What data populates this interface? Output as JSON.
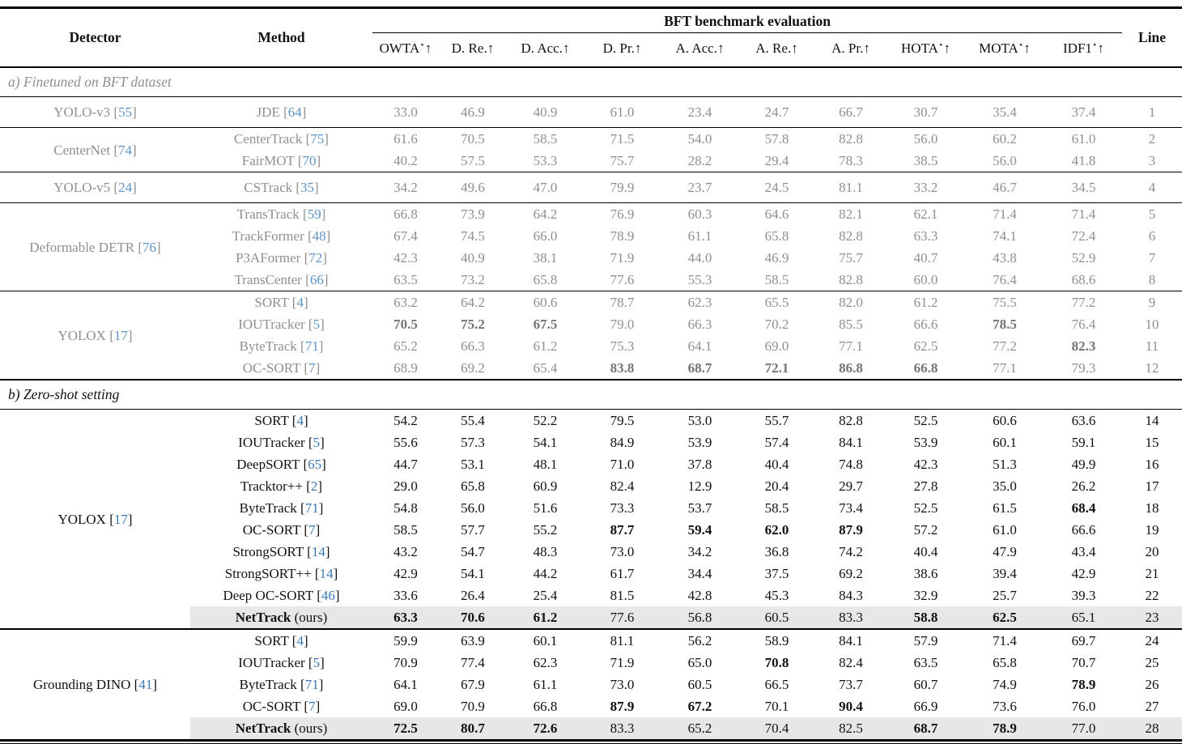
{
  "colors": {
    "citation_blue": "#3a78b5",
    "citation_blue_muted": "#5f94c6",
    "muted_text": "#8f8f8f",
    "muted_bold_text": "#757575",
    "highlight_bg": "#e7e7e7"
  },
  "header": {
    "benchmark_title": "BFT benchmark evaluation",
    "detector_col": "Detector",
    "method_col": "Method",
    "line_col": "Line",
    "metrics": [
      {
        "label": "OWTA",
        "star": true,
        "arrow": "↑"
      },
      {
        "label": "D. Re.",
        "star": false,
        "arrow": "↑"
      },
      {
        "label": "D. Acc.",
        "star": false,
        "arrow": "↑"
      },
      {
        "label": "D. Pr.",
        "star": false,
        "arrow": "↑"
      },
      {
        "label": "A. Acc.",
        "star": false,
        "arrow": "↑"
      },
      {
        "label": "A. Re.",
        "star": false,
        "arrow": "↑"
      },
      {
        "label": "A. Pr.",
        "star": false,
        "arrow": "↑"
      },
      {
        "label": "HOTA",
        "star": true,
        "arrow": "↑"
      },
      {
        "label": "MOTA",
        "star": true,
        "arrow": "↑"
      },
      {
        "label": "IDF1",
        "star": true,
        "arrow": "↑"
      }
    ]
  },
  "sections": [
    {
      "label": "a) Finetuned on BFT dataset",
      "muted": true,
      "groups": [
        {
          "detector": "YOLO-v3",
          "cite": "55",
          "rows": [
            {
              "method": "JDE",
              "cite": "64",
              "values": [
                "33.0",
                "46.9",
                "40.9",
                "61.0",
                "23.4",
                "24.7",
                "66.7",
                "30.7",
                "35.4",
                "37.4"
              ],
              "bold": [],
              "line": "1"
            }
          ]
        },
        {
          "detector": "CenterNet",
          "cite": "74",
          "rows": [
            {
              "method": "CenterTrack",
              "cite": "75",
              "values": [
                "61.6",
                "70.5",
                "58.5",
                "71.5",
                "54.0",
                "57.8",
                "82.8",
                "56.0",
                "60.2",
                "61.0"
              ],
              "bold": [],
              "line": "2"
            },
            {
              "method": "FairMOT",
              "cite": "70",
              "values": [
                "40.2",
                "57.5",
                "53.3",
                "75.7",
                "28.2",
                "29.4",
                "78.3",
                "38.5",
                "56.0",
                "41.8"
              ],
              "bold": [],
              "line": "3"
            }
          ]
        },
        {
          "detector": "YOLO-v5",
          "cite": "24",
          "rows": [
            {
              "method": "CSTrack",
              "cite": "35",
              "values": [
                "34.2",
                "49.6",
                "47.0",
                "79.9",
                "23.7",
                "24.5",
                "81.1",
                "33.2",
                "46.7",
                "34.5"
              ],
              "bold": [],
              "line": "4"
            }
          ]
        },
        {
          "detector": "Deformable DETR",
          "cite": "76",
          "rows": [
            {
              "method": "TransTrack",
              "cite": "59",
              "values": [
                "66.8",
                "73.9",
                "64.2",
                "76.9",
                "60.3",
                "64.6",
                "82.1",
                "62.1",
                "71.4",
                "71.4"
              ],
              "bold": [],
              "line": "5"
            },
            {
              "method": "TrackFormer",
              "cite": "48",
              "values": [
                "67.4",
                "74.5",
                "66.0",
                "78.9",
                "61.1",
                "65.8",
                "82.8",
                "63.3",
                "74.1",
                "72.4"
              ],
              "bold": [],
              "line": "6"
            },
            {
              "method": "P3AFormer",
              "cite": "72",
              "values": [
                "42.3",
                "40.9",
                "38.1",
                "71.9",
                "44.0",
                "46.9",
                "75.7",
                "40.7",
                "43.8",
                "52.9"
              ],
              "bold": [],
              "line": "7"
            },
            {
              "method": "TransCenter",
              "cite": "66",
              "values": [
                "63.5",
                "73.2",
                "65.8",
                "77.6",
                "55.3",
                "58.5",
                "82.8",
                "60.0",
                "76.4",
                "68.6"
              ],
              "bold": [],
              "line": "8"
            }
          ]
        },
        {
          "detector": "YOLOX",
          "cite": "17",
          "rows": [
            {
              "method": "SORT",
              "cite": "4",
              "values": [
                "63.2",
                "64.2",
                "60.6",
                "78.7",
                "62.3",
                "65.5",
                "82.0",
                "61.2",
                "75.5",
                "77.2"
              ],
              "bold": [],
              "line": "9"
            },
            {
              "method": "IOUTracker",
              "cite": "5",
              "values": [
                "70.5",
                "75.2",
                "67.5",
                "79.0",
                "66.3",
                "70.2",
                "85.5",
                "66.6",
                "78.5",
                "76.4"
              ],
              "bold": [
                0,
                1,
                2,
                8
              ],
              "line": "10"
            },
            {
              "method": "ByteTrack",
              "cite": "71",
              "values": [
                "65.2",
                "66.3",
                "61.2",
                "75.3",
                "64.1",
                "69.0",
                "77.1",
                "62.5",
                "77.2",
                "82.3"
              ],
              "bold": [
                9
              ],
              "line": "11"
            },
            {
              "method": "OC-SORT",
              "cite": "7",
              "values": [
                "68.9",
                "69.2",
                "65.4",
                "83.8",
                "68.7",
                "72.1",
                "86.8",
                "66.8",
                "77.1",
                "79.3"
              ],
              "bold": [
                3,
                4,
                5,
                6,
                7
              ],
              "line": "12"
            }
          ]
        }
      ]
    },
    {
      "label": "b) Zero-shot setting",
      "muted": false,
      "groups": [
        {
          "detector": "YOLOX",
          "cite": "17",
          "rows": [
            {
              "method": "SORT",
              "cite": "4",
              "values": [
                "54.2",
                "55.4",
                "52.2",
                "79.5",
                "53.0",
                "55.7",
                "82.8",
                "52.5",
                "60.6",
                "63.6"
              ],
              "bold": [],
              "line": "14"
            },
            {
              "method": "IOUTracker",
              "cite": "5",
              "values": [
                "55.6",
                "57.3",
                "54.1",
                "84.9",
                "53.9",
                "57.4",
                "84.1",
                "53.9",
                "60.1",
                "59.1"
              ],
              "bold": [],
              "line": "15"
            },
            {
              "method": "DeepSORT",
              "cite": "65",
              "values": [
                "44.7",
                "53.1",
                "48.1",
                "71.0",
                "37.8",
                "40.4",
                "74.8",
                "42.3",
                "51.3",
                "49.9"
              ],
              "bold": [],
              "line": "16"
            },
            {
              "method": "Tracktor++",
              "cite": "2",
              "values": [
                "29.0",
                "65.8",
                "60.9",
                "82.4",
                "12.9",
                "20.4",
                "29.7",
                "27.8",
                "35.0",
                "26.2"
              ],
              "bold": [],
              "line": "17"
            },
            {
              "method": "ByteTrack",
              "cite": "71",
              "values": [
                "54.8",
                "56.0",
                "51.6",
                "73.3",
                "53.7",
                "58.5",
                "73.4",
                "52.5",
                "61.5",
                "68.4"
              ],
              "bold": [
                9
              ],
              "line": "18"
            },
            {
              "method": "OC-SORT",
              "cite": "7",
              "values": [
                "58.5",
                "57.7",
                "55.2",
                "87.7",
                "59.4",
                "62.0",
                "87.9",
                "57.2",
                "61.0",
                "66.6"
              ],
              "bold": [
                3,
                4,
                5,
                6
              ],
              "line": "19"
            },
            {
              "method": "StrongSORT",
              "cite": "14",
              "values": [
                "43.2",
                "54.7",
                "48.3",
                "73.0",
                "34.2",
                "36.8",
                "74.2",
                "40.4",
                "47.9",
                "43.4"
              ],
              "bold": [],
              "line": "20"
            },
            {
              "method": "StrongSORT++",
              "cite": "14",
              "values": [
                "42.9",
                "54.1",
                "44.2",
                "61.7",
                "34.4",
                "37.5",
                "69.2",
                "38.6",
                "39.4",
                "42.9"
              ],
              "bold": [],
              "line": "21"
            },
            {
              "method": "Deep OC-SORT",
              "cite": "46",
              "values": [
                "33.6",
                "26.4",
                "25.4",
                "81.5",
                "42.8",
                "45.3",
                "84.3",
                "32.9",
                "25.7",
                "39.3"
              ],
              "bold": [],
              "line": "22"
            },
            {
              "method": "NetTrack",
              "suffix": " (ours)",
              "method_bold": true,
              "highlight": true,
              "values": [
                "63.3",
                "70.6",
                "61.2",
                "77.6",
                "56.8",
                "60.5",
                "83.3",
                "58.8",
                "62.5",
                "65.1"
              ],
              "bold": [
                0,
                1,
                2,
                7,
                8
              ],
              "line": "23"
            }
          ]
        },
        {
          "detector": "Grounding DINO",
          "cite": "41",
          "major": true,
          "rows": [
            {
              "method": "SORT",
              "cite": "4",
              "values": [
                "59.9",
                "63.9",
                "60.1",
                "81.1",
                "56.2",
                "58.9",
                "84.1",
                "57.9",
                "71.4",
                "69.7"
              ],
              "bold": [],
              "line": "24"
            },
            {
              "method": "IOUTracker",
              "cite": "5",
              "values": [
                "70.9",
                "77.4",
                "62.3",
                "71.9",
                "65.0",
                "70.8",
                "82.4",
                "63.5",
                "65.8",
                "70.7"
              ],
              "bold": [
                5
              ],
              "line": "25"
            },
            {
              "method": "ByteTrack",
              "cite": "71",
              "values": [
                "64.1",
                "67.9",
                "61.1",
                "73.0",
                "60.5",
                "66.5",
                "73.7",
                "60.7",
                "74.9",
                "78.9"
              ],
              "bold": [
                9
              ],
              "line": "26"
            },
            {
              "method": "OC-SORT",
              "cite": "7",
              "values": [
                "69.0",
                "70.9",
                "66.8",
                "87.9",
                "67.2",
                "70.1",
                "90.4",
                "66.9",
                "73.6",
                "76.0"
              ],
              "bold": [
                3,
                4,
                6
              ],
              "line": "27"
            },
            {
              "method": "NetTrack",
              "suffix": " (ours)",
              "method_bold": true,
              "highlight": true,
              "values": [
                "72.5",
                "80.7",
                "72.6",
                "83.3",
                "65.2",
                "70.4",
                "82.5",
                "68.7",
                "78.9",
                "77.0"
              ],
              "bold": [
                0,
                1,
                2,
                7,
                8
              ],
              "line": "28"
            }
          ]
        }
      ]
    }
  ]
}
